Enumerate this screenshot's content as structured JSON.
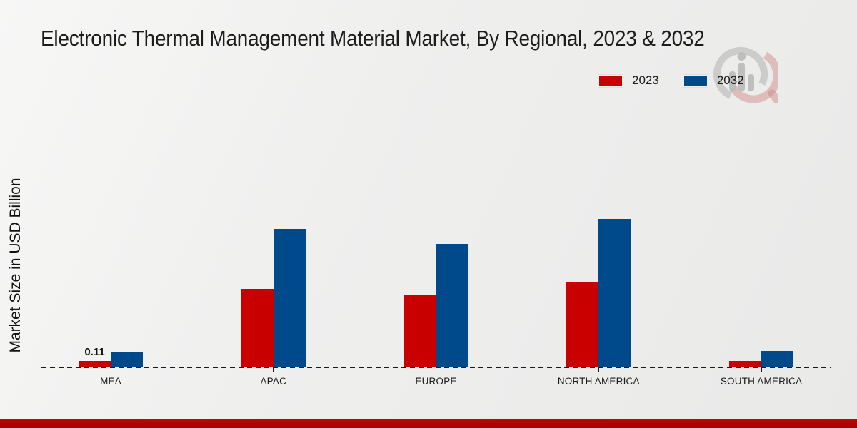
{
  "chart_data": {
    "type": "bar",
    "title": "Electronic Thermal Management Material Market, By Regional, 2023 & 2032",
    "xlabel": "",
    "ylabel": "Market Size in USD Billion",
    "categories": [
      "MEA",
      "APAC",
      "EUROPE",
      "NORTH AMERICA",
      "SOUTH AMERICA"
    ],
    "series": [
      {
        "name": "2023",
        "color": "#c80000",
        "values": [
          0.11,
          1.36,
          1.25,
          1.47,
          0.11
        ]
      },
      {
        "name": "2032",
        "color": "#00498a",
        "values": [
          0.27,
          2.4,
          2.13,
          2.57,
          0.28
        ]
      }
    ],
    "value_labels": [
      {
        "category": "MEA",
        "series": "2023",
        "text": "0.11"
      }
    ],
    "ylim": [
      0,
      3
    ],
    "legend_position": "top-right",
    "grid": false,
    "axis_style": "dashed-baseline-only"
  },
  "colors": {
    "accent_red": "#c80000",
    "accent_blue": "#00498a",
    "footer_red": "#b00000",
    "text": "#1a1a1a"
  },
  "watermark": {
    "name": "market-research-logo"
  }
}
